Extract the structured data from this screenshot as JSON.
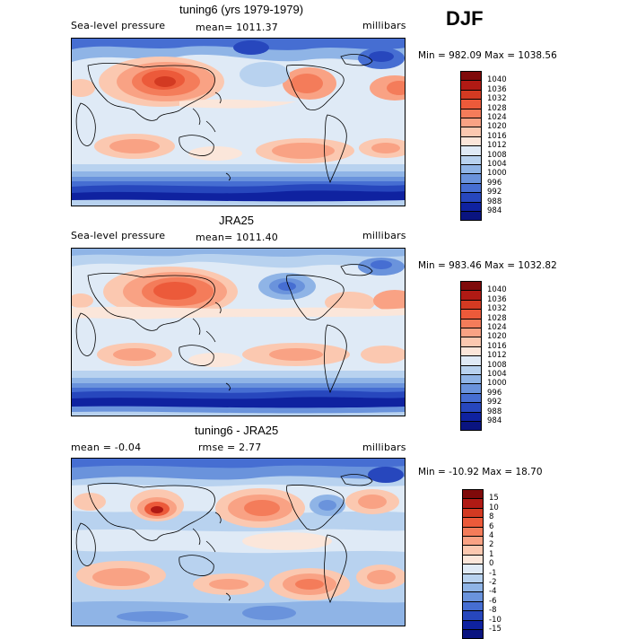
{
  "season": "DJF",
  "panels": [
    {
      "title": "tuning6 (yrs 1979-1979)",
      "left": "Sea-level pressure",
      "center": "mean= 1011.37",
      "right": "millibars",
      "minmax": "Min = 982.09 Max = 1038.56",
      "colorbar": {
        "labels": [
          "1040",
          "1036",
          "1032",
          "1028",
          "1024",
          "1020",
          "1016",
          "1012",
          "1008",
          "1004",
          "1000",
          "996",
          "992",
          "988",
          "984"
        ],
        "colors": [
          "#7f0a0a",
          "#b01a14",
          "#d33a22",
          "#ec5a3a",
          "#f47c5a",
          "#f9a284",
          "#fbc8b0",
          "#fbe6da",
          "#dfeaf6",
          "#b8d2ef",
          "#8fb4e6",
          "#6a93dc",
          "#466ed2",
          "#2747bd",
          "#0f22a0",
          "#0a1480"
        ]
      }
    },
    {
      "title": "JRA25",
      "left": "Sea-level pressure",
      "center": "mean= 1011.40",
      "right": "millibars",
      "minmax": "Min = 983.46 Max = 1032.82",
      "colorbar": {
        "labels": [
          "1040",
          "1036",
          "1032",
          "1028",
          "1024",
          "1020",
          "1016",
          "1012",
          "1008",
          "1004",
          "1000",
          "996",
          "992",
          "988",
          "984"
        ],
        "colors": [
          "#7f0a0a",
          "#b01a14",
          "#d33a22",
          "#ec5a3a",
          "#f47c5a",
          "#f9a284",
          "#fbc8b0",
          "#fbe6da",
          "#dfeaf6",
          "#b8d2ef",
          "#8fb4e6",
          "#6a93dc",
          "#466ed2",
          "#2747bd",
          "#0f22a0",
          "#0a1480"
        ]
      }
    },
    {
      "title": "tuning6 - JRA25",
      "left": "mean =   -0.04",
      "center": "rmse =    2.77",
      "right": "millibars",
      "minmax": "Min = -10.92 Max =  18.70",
      "colorbar": {
        "labels": [
          "15",
          "10",
          "8",
          "6",
          "4",
          "2",
          "1",
          "0",
          "-1",
          "-2",
          "-4",
          "-6",
          "-8",
          "-10",
          "-15"
        ],
        "colors": [
          "#7f0a0a",
          "#b01a14",
          "#d33a22",
          "#ec5a3a",
          "#f47c5a",
          "#f9a284",
          "#fbc8b0",
          "#fbe6da",
          "#dfeaf6",
          "#b8d2ef",
          "#8fb4e6",
          "#6a93dc",
          "#466ed2",
          "#2747bd",
          "#0f22a0",
          "#0a1480"
        ]
      }
    }
  ]
}
